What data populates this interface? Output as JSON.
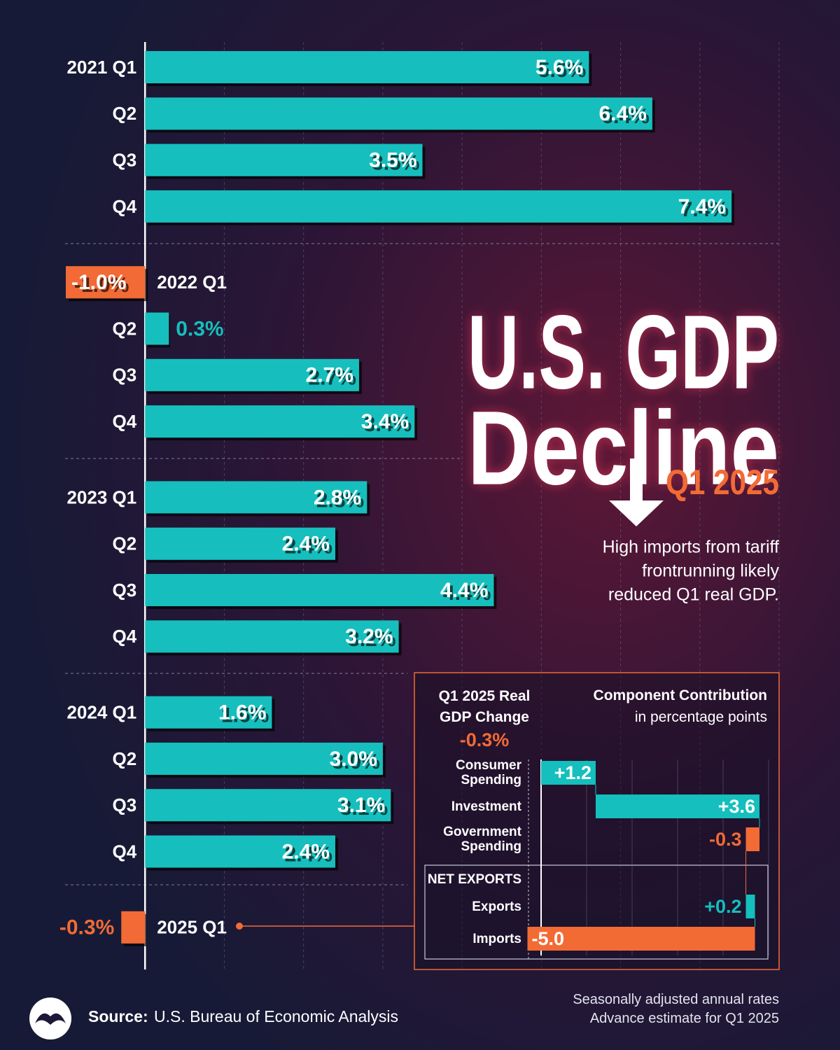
{
  "chart_data": [
    {
      "type": "bar",
      "title": [
        "U.S. GDP",
        "Decline"
      ],
      "subtitle": "Q1 2025",
      "annotation": [
        "High imports from tariff",
        "frontrunning likely",
        "reduced Q1 real GDP."
      ],
      "categories": [
        "2021 Q1",
        "Q2",
        "Q3",
        "Q4",
        "2022 Q1",
        "Q2",
        "Q3",
        "Q4",
        "2023 Q1",
        "Q2",
        "Q3",
        "Q4",
        "2024 Q1",
        "Q2",
        "Q3",
        "Q4",
        "2025 Q1"
      ],
      "values": [
        5.6,
        6.4,
        3.5,
        7.4,
        -1.0,
        0.3,
        2.7,
        3.4,
        2.8,
        2.4,
        4.4,
        3.2,
        1.6,
        3.0,
        3.1,
        2.4,
        -0.3
      ],
      "value_labels": [
        "5.6%",
        "6.4%",
        "3.5%",
        "7.4%",
        "-1.0%",
        "0.3%",
        "2.7%",
        "3.4%",
        "2.8%",
        "2.4%",
        "4.4%",
        "3.2%",
        "1.6%",
        "3.0%",
        "3.1%",
        "2.4%",
        "-0.3%"
      ],
      "xlim": [
        -1,
        8
      ],
      "xticks": [
        0,
        1,
        2,
        3,
        4,
        5,
        6,
        7,
        8
      ],
      "colors": {
        "positive": "#14bfbd",
        "negative": "#f26b35"
      },
      "grid": true
    },
    {
      "type": "waterfall",
      "title": "Q1 2025 Real GDP Change",
      "total_label": "-0.3%",
      "subtitle": [
        "Component Contribution",
        "in percentage points"
      ],
      "categories": [
        "Consumer Spending",
        "Investment",
        "Government Spending",
        "Exports",
        "Imports"
      ],
      "values": [
        1.2,
        3.6,
        -0.3,
        0.2,
        -5.0
      ],
      "value_labels": [
        "+1.2",
        "+3.6",
        "-0.3",
        "+0.2",
        "-5.0"
      ],
      "group_label": "NET EXPORTS",
      "xlim": [
        -0.5,
        5
      ],
      "xticks": [
        0,
        1,
        2,
        3,
        4,
        5
      ],
      "colors": {
        "positive": "#14bfbd",
        "negative": "#f26b35"
      },
      "grid": true
    }
  ],
  "source": {
    "label": "Source:",
    "text": "U.S. Bureau of Economic Analysis"
  },
  "notes": [
    "Seasonally adjusted annual rates",
    "Advance estimate for Q1 2025"
  ]
}
